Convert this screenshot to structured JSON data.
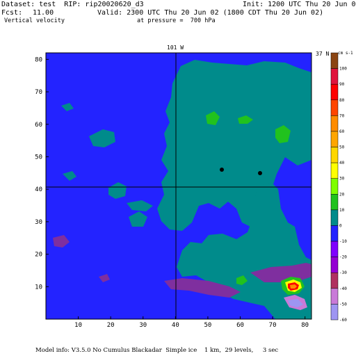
{
  "header": {
    "dataset": "Dataset: test  RIP: rip20020620_d3",
    "init": "Init: 1200 UTC Thu 20 Jun 02",
    "fcst_label": "Fcst:",
    "fcst_value": "11.00",
    "valid": "Valid: 2300 UTC Thu 20 Jun 02 (1800 CDT Thu 20 Jun 02)",
    "field": "Vertical velocity",
    "level": "at pressure =  700 hPa"
  },
  "map": {
    "lat_label_top": "101 W",
    "lon_label_right": "37 N",
    "colors": {
      "background_field": "#2323ff",
      "teal": "#008b8b",
      "green": "#21c21e",
      "light_green": "#7fff00",
      "yellow": "#ffff00",
      "orange": "#ff8c00",
      "red": "#ff0000",
      "purple": "#7f2f9f",
      "light_purple": "#c97ad8",
      "lavender": "#9e95f2"
    },
    "points": [
      {
        "name": "station-1",
        "x": 54,
        "y": 46.5
      },
      {
        "name": "station-2",
        "x": 66,
        "y": 45.5
      }
    ],
    "x_ticks": [
      "10",
      "20",
      "30",
      "40",
      "50",
      "60",
      "70",
      "80"
    ],
    "y_ticks": [
      "10",
      "20",
      "30",
      "40",
      "50",
      "60",
      "70",
      "80"
    ]
  },
  "colorbar": {
    "units": "cm s-1",
    "labels": [
      "100",
      "90",
      "80",
      "70",
      "60",
      "50",
      "40",
      "30",
      "20",
      "10",
      "0",
      "-10",
      "-20",
      "-30",
      "-40",
      "-50",
      "-60"
    ],
    "colors": [
      "#8b4513",
      "#e0143c",
      "#ff0000",
      "#ff4500",
      "#ff8c00",
      "#ffa500",
      "#ffd700",
      "#ffff00",
      "#7fff00",
      "#21c21e",
      "#008b8b",
      "#2323ff",
      "#7f00ff",
      "#9400d3",
      "#b03060",
      "#c97ad8",
      "#9e95f2"
    ]
  },
  "footer": "Model info: V3.5.0 No Cumulus Blackadar  Simple ice    1 km,  29 levels,     3 sec"
}
